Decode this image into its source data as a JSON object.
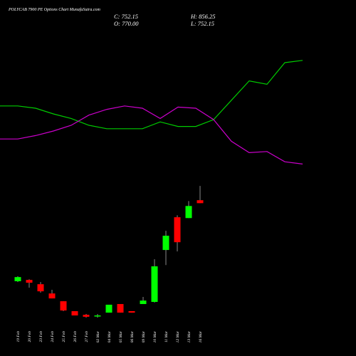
{
  "chart_data": [
    {
      "type": "line",
      "categories": [
        null,
        null,
        null,
        null,
        null,
        null,
        null,
        null,
        null,
        null,
        null,
        null,
        null,
        null,
        null,
        null,
        null,
        null
      ],
      "series": [
        {
          "color": "#00cc00",
          "values": [
            57,
            57,
            55,
            50,
            46,
            40,
            37,
            37,
            37,
            43,
            39,
            39,
            45,
            62,
            79,
            76,
            95,
            97
          ]
        },
        {
          "color": "#cc00cc",
          "values": [
            28,
            28,
            31,
            35,
            40,
            49,
            54,
            57,
            55,
            46,
            56,
            55,
            45,
            26,
            16,
            17,
            8,
            6
          ]
        }
      ],
      "ylim": [
        0,
        100
      ]
    },
    {
      "type": "candlestick",
      "title": "POLYCAB 7900 PE Options Chart MunafaSutra.com",
      "annotations": [
        "C: 752.15",
        "H: 856.25",
        "O: 770.00",
        "L: 752.15"
      ],
      "categories": [
        "19 Feb",
        "20 Feb",
        "23 Feb",
        "24 Feb",
        "25 Feb",
        "26 Feb",
        "27 Feb",
        "02 Mar",
        "04 Mar",
        "05 Mar",
        "06 Mar",
        "09 Mar",
        "10 Mar",
        "11 Mar",
        "12 Mar",
        "13 Mar",
        "16 Mar"
      ],
      "open": [
        280,
        288,
        262,
        206,
        159,
        99,
        77,
        69,
        90,
        142,
        99,
        142,
        155,
        469,
        667,
        662,
        770
      ],
      "high": [
        310,
        292,
        275,
        228,
        159,
        99,
        82,
        82,
        138,
        142,
        99,
        185,
        413,
        585,
        679,
        765,
        856.25
      ],
      "low": [
        275,
        241,
        211,
        176,
        99,
        73,
        60,
        60,
        90,
        90,
        90,
        142,
        151,
        378,
        460,
        662,
        752.15
      ],
      "close": [
        305,
        271,
        219,
        176,
        103,
        73,
        65,
        73,
        138,
        90,
        90,
        163,
        370,
        555,
        516,
        735,
        752.15
      ],
      "up_color": "#00ff00",
      "down_color": "#ff0000",
      "wick_color": "#888888",
      "ylim": [
        0,
        900
      ]
    }
  ]
}
